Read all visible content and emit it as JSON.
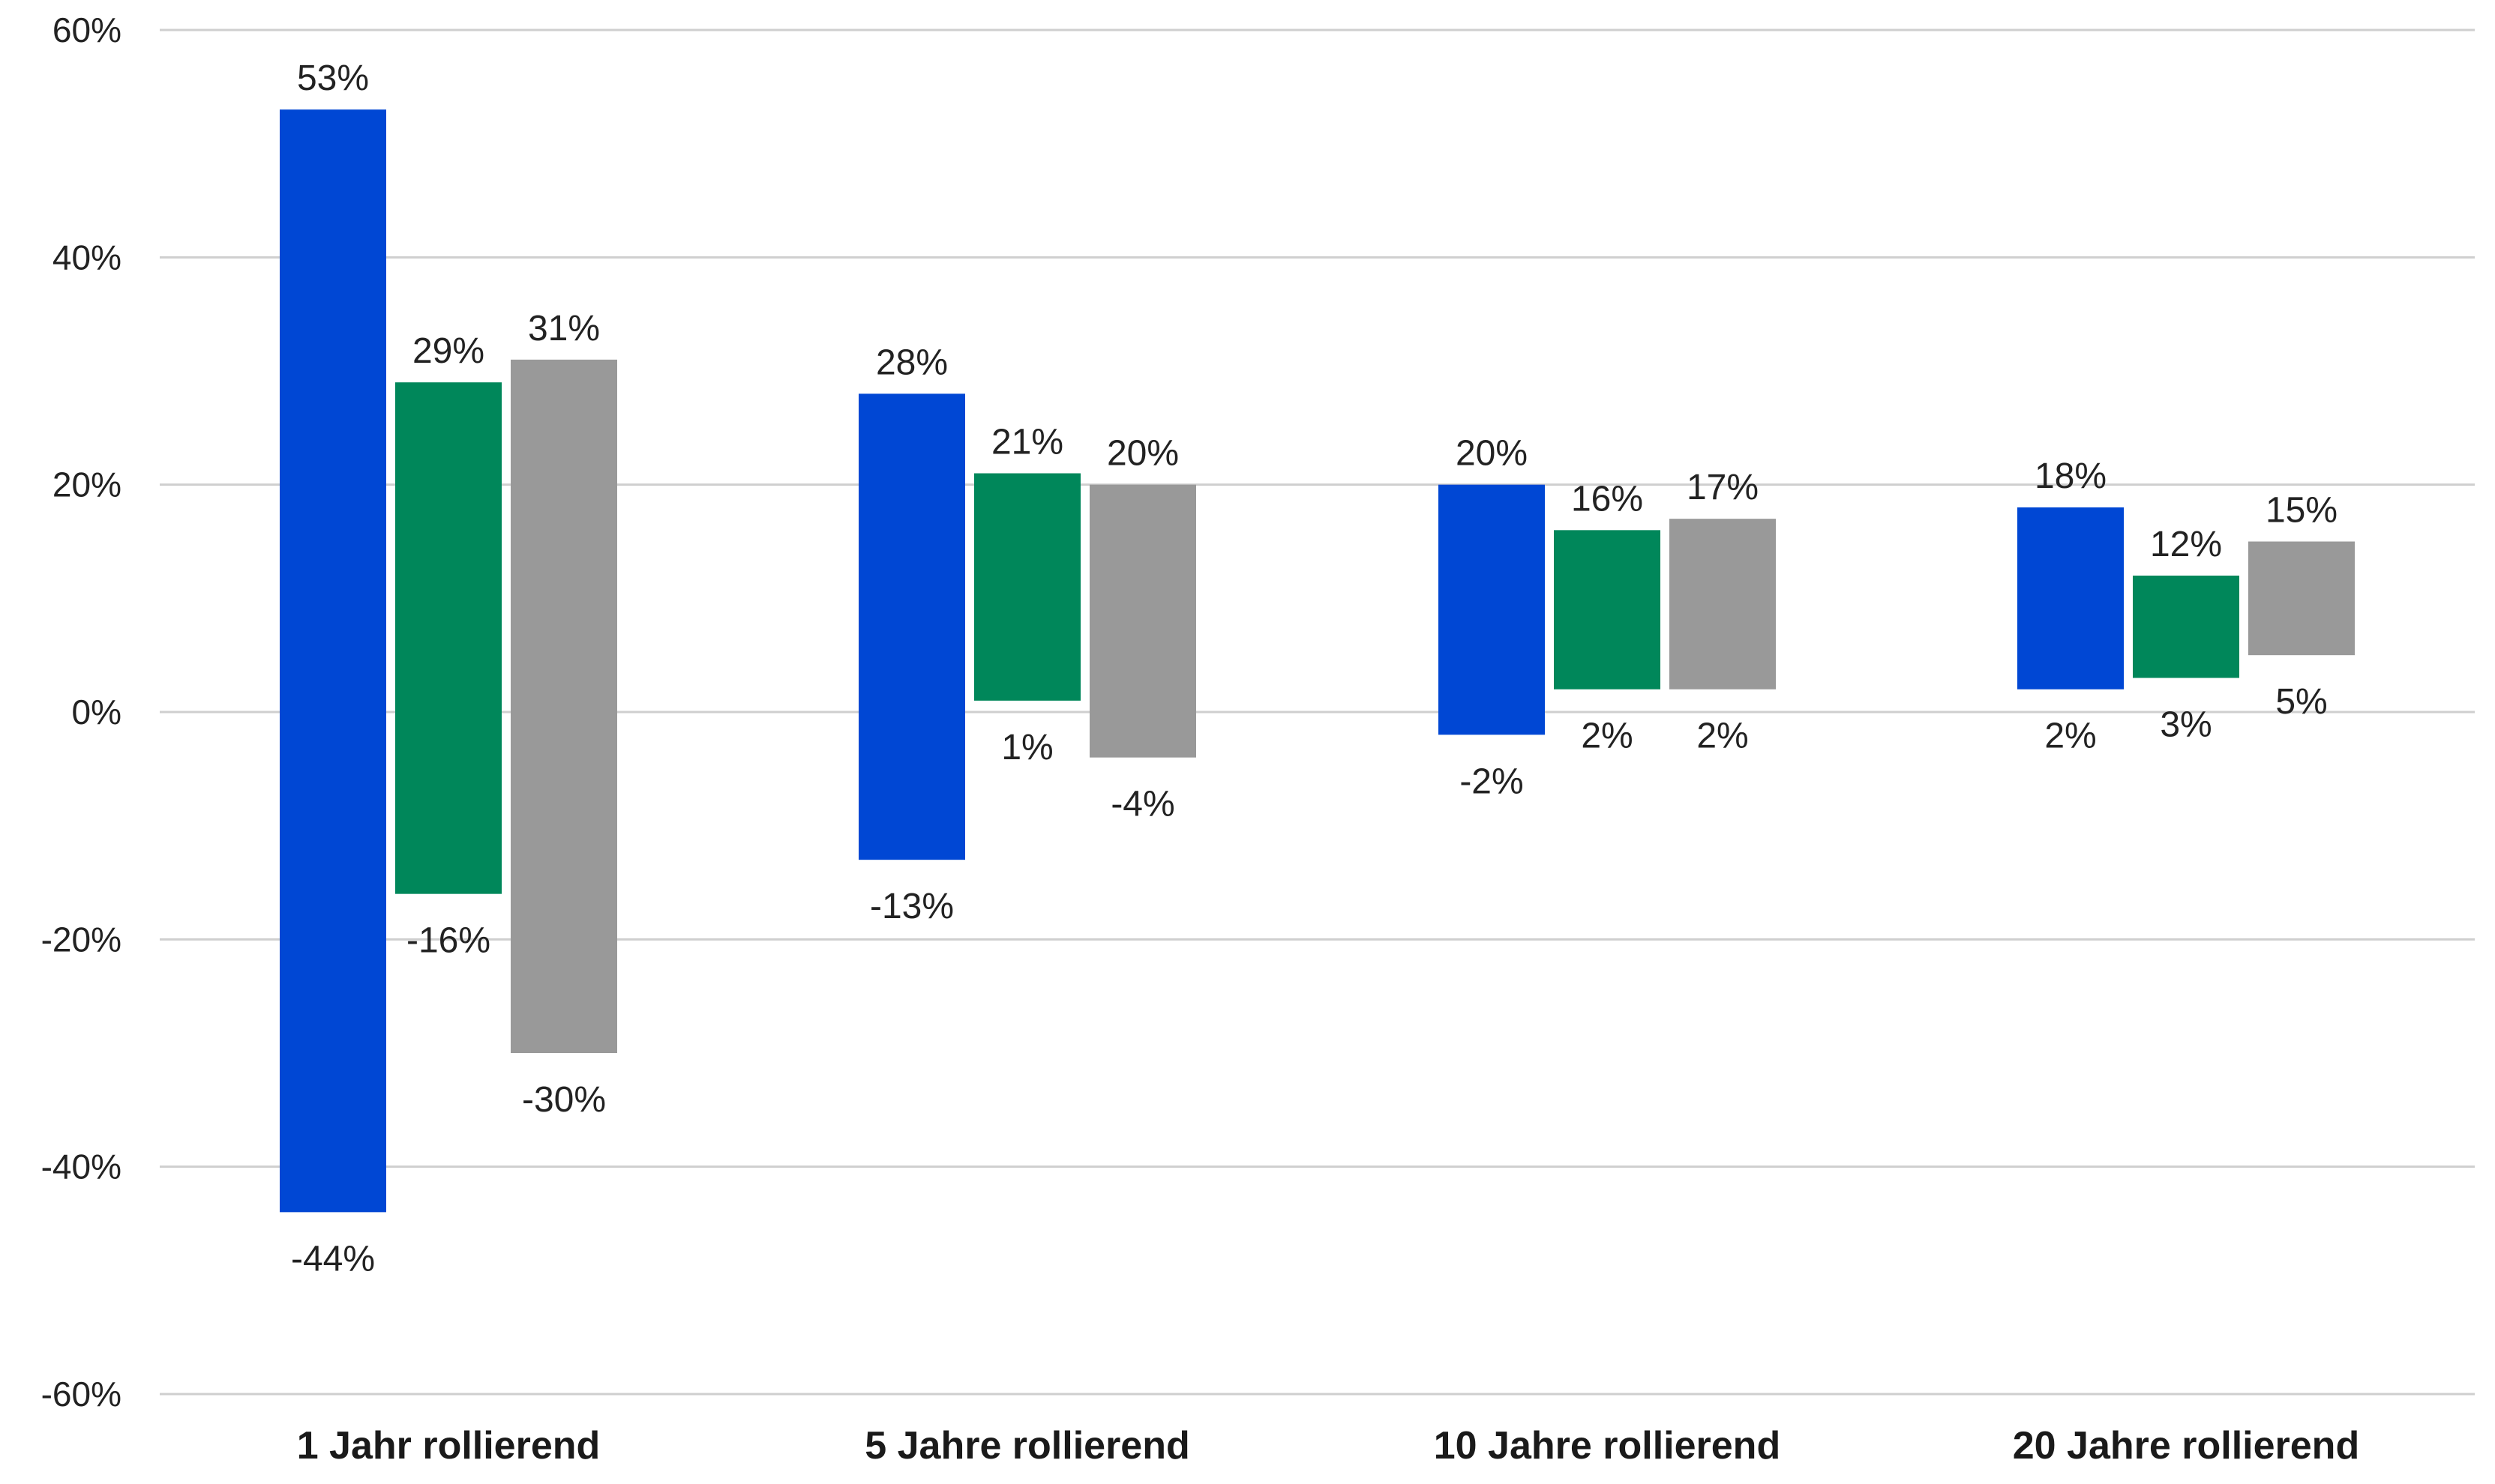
{
  "chart_data": {
    "type": "bar",
    "subtype": "floating-range",
    "categories": [
      "1 Jahr rollierend",
      "5 Jahre rollierend",
      "10 Jahre rollierend",
      "20 Jahre rollierend"
    ],
    "series": [
      {
        "color": "#0047d4",
        "max": [
          53,
          28,
          20,
          18
        ],
        "min": [
          -44,
          -13,
          -2,
          2
        ],
        "max_labels": [
          "53%",
          "28%",
          "20%",
          "18%"
        ],
        "min_labels": [
          "-44%",
          "-13%",
          "-2%",
          "2%"
        ]
      },
      {
        "color": "#00875a",
        "max": [
          29,
          21,
          16,
          12
        ],
        "min": [
          -16,
          1,
          2,
          3
        ],
        "max_labels": [
          "29%",
          "21%",
          "16%",
          "12%"
        ],
        "min_labels": [
          "-16%",
          "1%",
          "2%",
          "3%"
        ]
      },
      {
        "color": "#999999",
        "max": [
          31,
          20,
          17,
          15
        ],
        "min": [
          -30,
          -4,
          2,
          5
        ],
        "max_labels": [
          "31%",
          "20%",
          "17%",
          "15%"
        ],
        "min_labels": [
          "-30%",
          "-4%",
          "2%",
          "5%"
        ]
      }
    ],
    "ylim": [
      -60,
      60
    ],
    "yticks": [
      60,
      40,
      20,
      0,
      -20,
      -40,
      -60
    ],
    "ytick_labels": [
      "60%",
      "40%",
      "20%",
      "0%",
      "-20%",
      "-40%",
      "-60%"
    ],
    "grid": true,
    "legend": "none",
    "title": "",
    "xlabel": "",
    "ylabel": ""
  }
}
